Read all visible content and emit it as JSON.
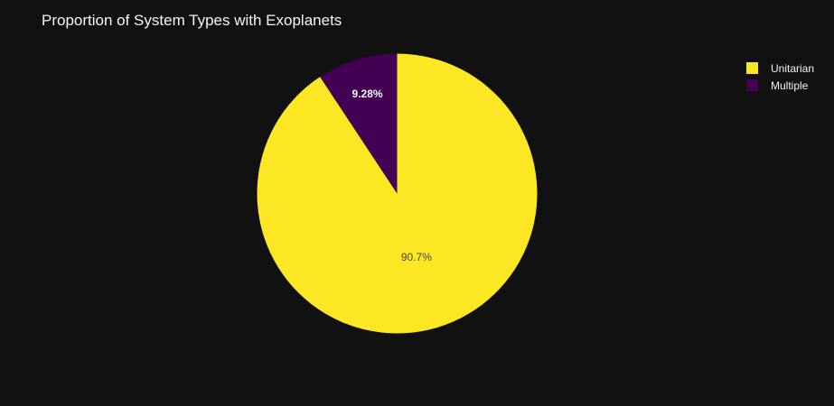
{
  "chart_data": {
    "type": "pie",
    "title": "Proportion of System Types with Exoplanets",
    "slices": [
      {
        "label": "Unitarian",
        "value": 90.72,
        "display": "90.7%",
        "color": "#fde725",
        "text_color": "#444444"
      },
      {
        "label": "Multiple",
        "value": 9.28,
        "display": "9.28%",
        "color": "#440154",
        "text_color": "#f2f5fa"
      }
    ],
    "legend": {
      "position": "top-right",
      "items": [
        "Unitarian",
        "Multiple"
      ]
    },
    "background": "#111111"
  }
}
